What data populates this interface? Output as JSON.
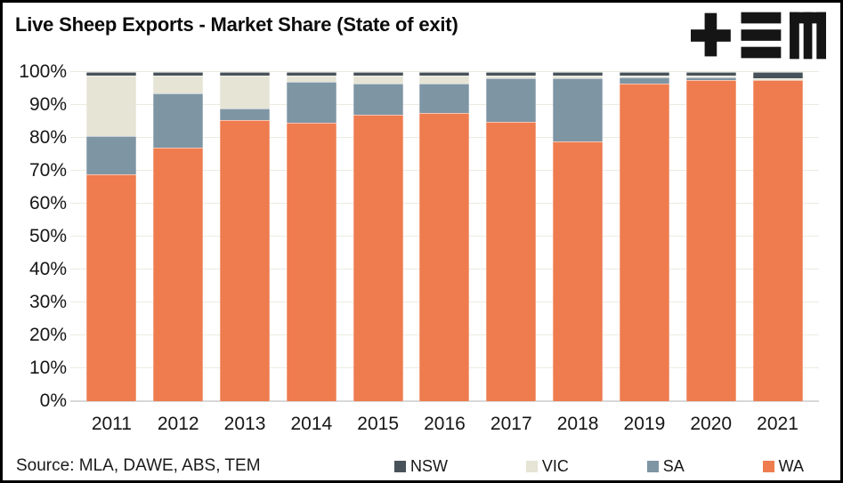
{
  "header": {
    "title": "Live Sheep Exports - Market Share (State of exit)"
  },
  "footer": {
    "source": "Source: MLA, DAWE, ABS, TEM"
  },
  "colors": {
    "wa_orange": "#EE7C4F",
    "sa_bluegray": "#7E95A4",
    "vic_cream": "#E5E4D5",
    "nsw_darkslate": "#48525A",
    "gridline": "#ECEBE0",
    "axis_line": "#D8D8D8",
    "frame_border": "#000000",
    "logo_black": "#151515"
  },
  "chart_data": {
    "type": "bar",
    "stacked": true,
    "stack_unit": "percent_of_total",
    "title": "Live Sheep Exports - Market Share (State of exit)",
    "categories": [
      "2011",
      "2012",
      "2013",
      "2014",
      "2015",
      "2016",
      "2017",
      "2018",
      "2019",
      "2020",
      "2021"
    ],
    "series": [
      {
        "name": "WA",
        "color": "#EE7C4F",
        "values": [
          69,
          77,
          85.5,
          84.5,
          87,
          87.5,
          85,
          79,
          96.5,
          97.5,
          97.5
        ]
      },
      {
        "name": "SA",
        "color": "#7E95A4",
        "values": [
          11.5,
          16.5,
          3.5,
          12.5,
          9.5,
          9,
          13,
          19,
          2,
          1,
          0.2
        ]
      },
      {
        "name": "VIC",
        "color": "#E5E4D5",
        "values": [
          18.5,
          5.5,
          10,
          2,
          2.5,
          2.5,
          1,
          1,
          0.5,
          0.3,
          0.3
        ]
      },
      {
        "name": "NSW",
        "color": "#48525A",
        "values": [
          1,
          1,
          1,
          1,
          1,
          1,
          1,
          1,
          1,
          1.2,
          2
        ]
      }
    ],
    "legend_order": [
      "NSW",
      "VIC",
      "SA",
      "WA"
    ],
    "legend_position": "bottom",
    "xlabel": "",
    "ylabel": "",
    "ylim": [
      0,
      100
    ],
    "ytick_step": 10,
    "yticks": [
      "0%",
      "10%",
      "20%",
      "30%",
      "40%",
      "50%",
      "60%",
      "70%",
      "80%",
      "90%",
      "100%"
    ],
    "grid": true
  }
}
